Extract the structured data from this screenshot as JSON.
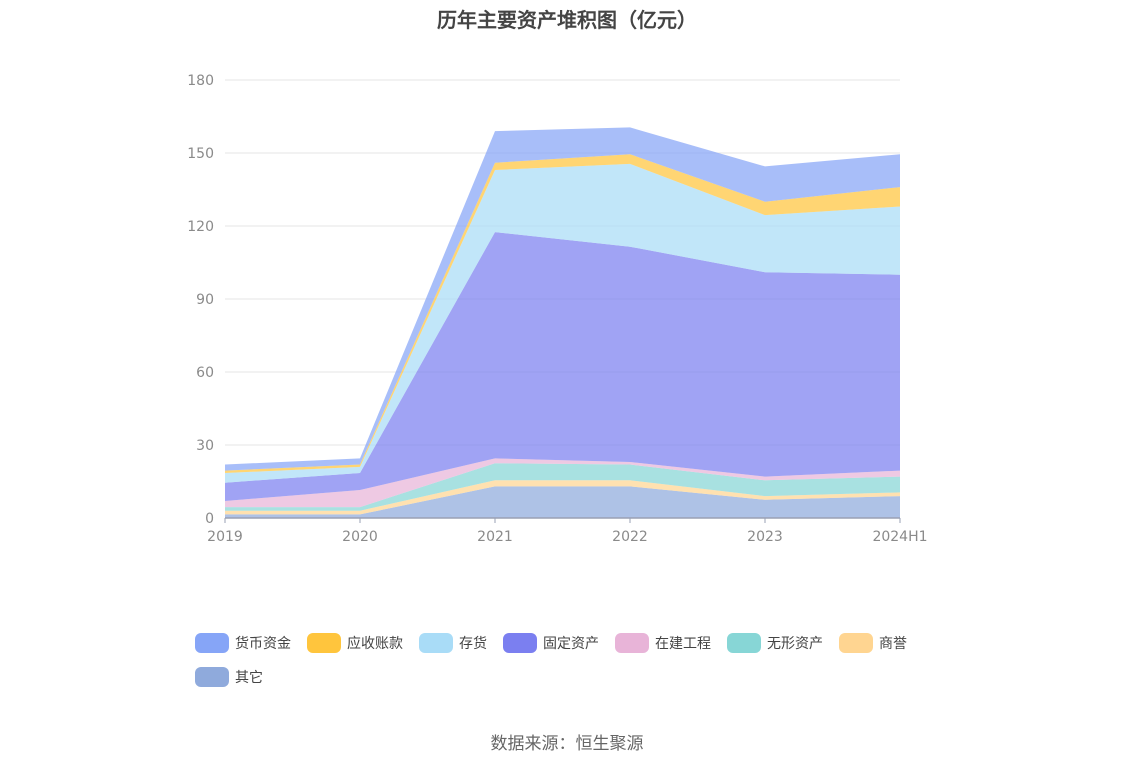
{
  "title": "历年主要资产堆积图（亿元）",
  "source": "数据来源：恒生聚源",
  "chart_data": {
    "type": "area",
    "stacked": true,
    "title": "历年主要资产堆积图（亿元）",
    "x": [
      "2019",
      "2020",
      "2021",
      "2022",
      "2023",
      "2024H1"
    ],
    "ylim": [
      0,
      180
    ],
    "yticks": [
      0,
      30,
      60,
      90,
      120,
      150,
      180
    ],
    "grid": true,
    "legend_position": "bottom",
    "series": [
      {
        "name": "其它",
        "color": "#8faadc",
        "values": [
          1.5,
          1.5,
          13,
          13,
          7.5,
          9
        ]
      },
      {
        "name": "商誉",
        "color": "#ffd591",
        "values": [
          1.5,
          1.5,
          2.5,
          2.5,
          1.5,
          1.5
        ]
      },
      {
        "name": "无形资产",
        "color": "#87d6d6",
        "values": [
          1.5,
          1.5,
          7,
          6.5,
          6.5,
          6.5
        ]
      },
      {
        "name": "在建工程",
        "color": "#e8b4d8",
        "values": [
          2.5,
          7,
          2,
          1,
          1.5,
          2.5
        ]
      },
      {
        "name": "固定资产",
        "color": "#7b7ff0",
        "values": [
          7.5,
          7,
          93,
          88.5,
          84,
          80.5
        ]
      },
      {
        "name": "存货",
        "color": "#a9dcf7",
        "values": [
          4,
          2.5,
          25.5,
          34,
          23.5,
          28
        ]
      },
      {
        "name": "应收账款",
        "color": "#ffc53d",
        "values": [
          1,
          1,
          3,
          4,
          5.5,
          8
        ]
      },
      {
        "name": "货币资金",
        "color": "#86a5f7",
        "values": [
          2.5,
          2.5,
          13,
          11,
          14.5,
          13.5
        ]
      }
    ]
  },
  "legend": [
    {
      "name": "货币资金",
      "color": "#86a5f7"
    },
    {
      "name": "应收账款",
      "color": "#ffc53d"
    },
    {
      "name": "存货",
      "color": "#a9dcf7"
    },
    {
      "name": "固定资产",
      "color": "#7b7ff0"
    },
    {
      "name": "在建工程",
      "color": "#e8b4d8"
    },
    {
      "name": "无形资产",
      "color": "#87d6d6"
    },
    {
      "name": "商誉",
      "color": "#ffd591"
    },
    {
      "name": "其它",
      "color": "#8faadc"
    }
  ]
}
